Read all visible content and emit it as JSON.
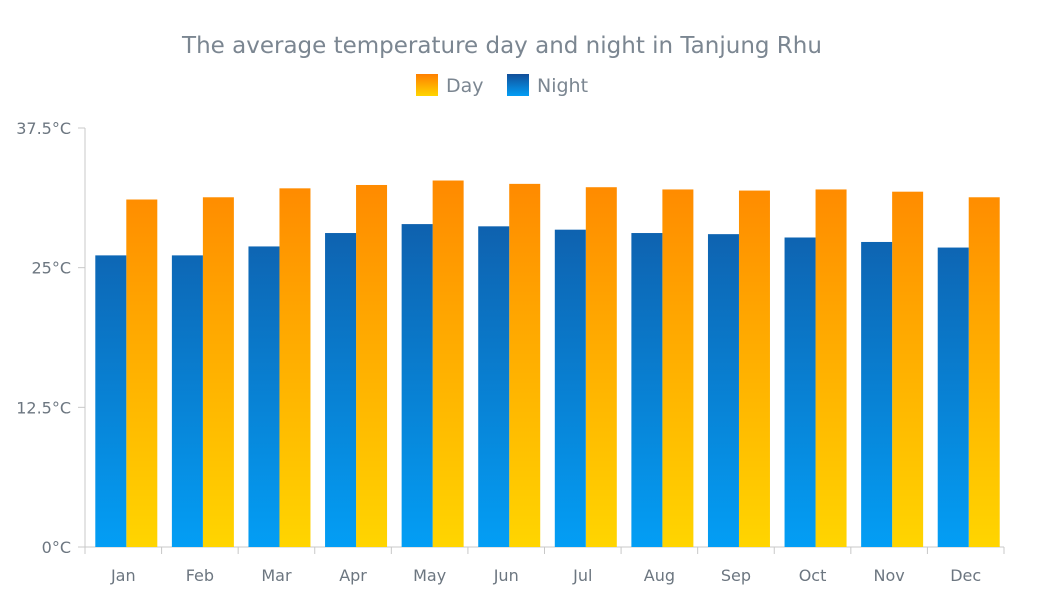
{
  "chart_data": {
    "type": "bar",
    "title": "The average temperature day and night in Tanjung Rhu",
    "categories": [
      "Jan",
      "Feb",
      "Mar",
      "Apr",
      "May",
      "Jun",
      "Jul",
      "Aug",
      "Sep",
      "Oct",
      "Nov",
      "Dec"
    ],
    "series": [
      {
        "name": "Night",
        "values": [
          26.1,
          26.1,
          26.9,
          28.1,
          28.9,
          28.7,
          28.4,
          28.1,
          28.0,
          27.7,
          27.3,
          26.8
        ]
      },
      {
        "name": "Day",
        "values": [
          31.1,
          31.3,
          32.1,
          32.4,
          32.8,
          32.5,
          32.2,
          32.0,
          31.9,
          32.0,
          31.8,
          31.3
        ]
      }
    ],
    "y_ticks": [
      "0°C",
      "12.5°C",
      "25°C",
      "37.5°C"
    ],
    "y_tick_values": [
      0,
      12.5,
      25,
      37.5
    ],
    "ylim": [
      0,
      37.5
    ],
    "grid": false,
    "legend_position": "top-center",
    "colors": {
      "day_top": "#ff7f00",
      "day_bottom": "#ffd500",
      "night_top": "#124f99",
      "night_bottom": "#039ef5",
      "axis": "#c8c8c8"
    }
  }
}
